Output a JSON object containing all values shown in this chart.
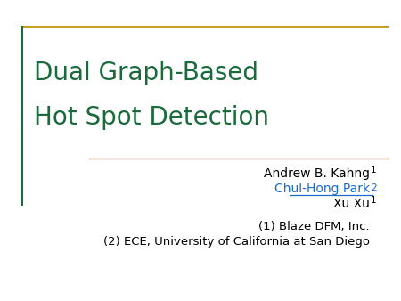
{
  "title_line1": "Dual Graph-Based",
  "title_line2": "Hot Spot Detection",
  "title_color": "#1a6b3c",
  "title_fontsize": 20,
  "author1": "Andrew B. Kahng",
  "author1_sup": "1",
  "author2": "Chul-Hong Park",
  "author2_sup": "2",
  "author2_color": "#1a6bcc",
  "author3": "Xu Xu",
  "author3_sup": "1",
  "author_fontsize": 10,
  "affil1": "(1) Blaze DFM, Inc.",
  "affil2": "(2) ECE, University of California at San Diego",
  "affil_fontsize": 9.5,
  "border_top_color": "#c8a020",
  "border_left_color": "#1a6b3c",
  "separator_color": "#b8a060",
  "background_color": "#ffffff"
}
